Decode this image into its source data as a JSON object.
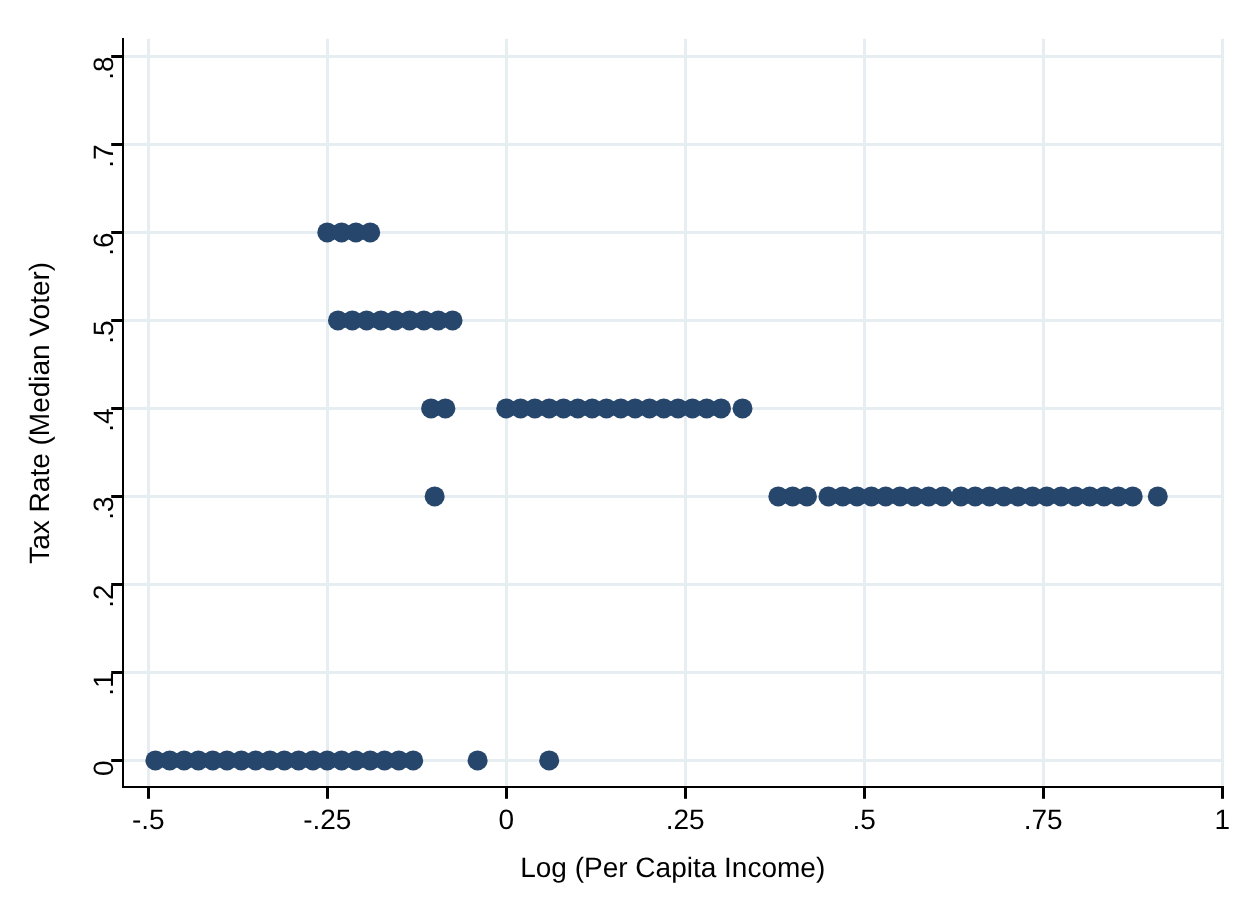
{
  "chart_data": {
    "type": "scatter",
    "xlabel": "Log (Per Capita Income)",
    "ylabel": "Tax Rate (Median Voter)",
    "xlim": [
      -0.535,
      1.0
    ],
    "ylim": [
      -0.03,
      0.82
    ],
    "xticks": [
      {
        "value": -0.5,
        "label": "-.5"
      },
      {
        "value": -0.25,
        "label": "-.25"
      },
      0,
      {
        "value": 0.25,
        "label": ".25"
      },
      {
        "value": 0.5,
        "label": ".5"
      },
      {
        "value": 0.75,
        "label": ".75"
      },
      1
    ],
    "yticks": [
      0,
      {
        "value": 0.1,
        "label": ".1"
      },
      {
        "value": 0.2,
        "label": ".2"
      },
      {
        "value": 0.3,
        "label": ".3"
      },
      {
        "value": 0.4,
        "label": ".4"
      },
      {
        "value": 0.5,
        "label": ".5"
      },
      {
        "value": 0.6,
        "label": ".6"
      },
      {
        "value": 0.7,
        "label": ".7"
      },
      {
        "value": 0.8,
        "label": ".8"
      }
    ],
    "grid": true,
    "legend": false,
    "marker": "circle",
    "series": [
      {
        "color": "#27466b",
        "x": [
          -0.25,
          -0.23,
          -0.21,
          -0.19,
          -0.235,
          -0.215,
          -0.195,
          -0.175,
          -0.155,
          -0.135,
          -0.115,
          -0.095,
          -0.075,
          -0.105,
          -0.085,
          0,
          0.02,
          0.04,
          0.06,
          0.08,
          0.1,
          0.12,
          0.14,
          0.16,
          0.18,
          0.2,
          0.22,
          0.24,
          0.26,
          0.28,
          0.3,
          0.33,
          -0.1,
          0.38,
          0.4,
          0.42,
          0.45,
          0.47,
          0.49,
          0.51,
          0.53,
          0.55,
          0.57,
          0.59,
          0.61,
          0.635,
          0.655,
          0.675,
          0.695,
          0.715,
          0.735,
          0.755,
          0.775,
          0.795,
          0.815,
          0.835,
          0.855,
          0.875,
          0.91,
          -0.49,
          -0.47,
          -0.45,
          -0.43,
          -0.41,
          -0.39,
          -0.37,
          -0.35,
          -0.33,
          -0.31,
          -0.29,
          -0.27,
          -0.25,
          -0.23,
          -0.21,
          -0.19,
          -0.17,
          -0.15,
          -0.13,
          -0.04,
          0.06
        ],
        "values": [
          0.6,
          0.6,
          0.6,
          0.6,
          0.5,
          0.5,
          0.5,
          0.5,
          0.5,
          0.5,
          0.5,
          0.5,
          0.5,
          0.4,
          0.4,
          0.4,
          0.4,
          0.4,
          0.4,
          0.4,
          0.4,
          0.4,
          0.4,
          0.4,
          0.4,
          0.4,
          0.4,
          0.4,
          0.4,
          0.4,
          0.4,
          0.4,
          0.3,
          0.3,
          0.3,
          0.3,
          0.3,
          0.3,
          0.3,
          0.3,
          0.3,
          0.3,
          0.3,
          0.3,
          0.3,
          0.3,
          0.3,
          0.3,
          0.3,
          0.3,
          0.3,
          0.3,
          0.3,
          0.3,
          0.3,
          0.3,
          0.3,
          0.3,
          0.3,
          0,
          0,
          0,
          0,
          0,
          0,
          0,
          0,
          0,
          0,
          0,
          0,
          0,
          0,
          0,
          0,
          0,
          0,
          0,
          0,
          0
        ]
      }
    ]
  }
}
